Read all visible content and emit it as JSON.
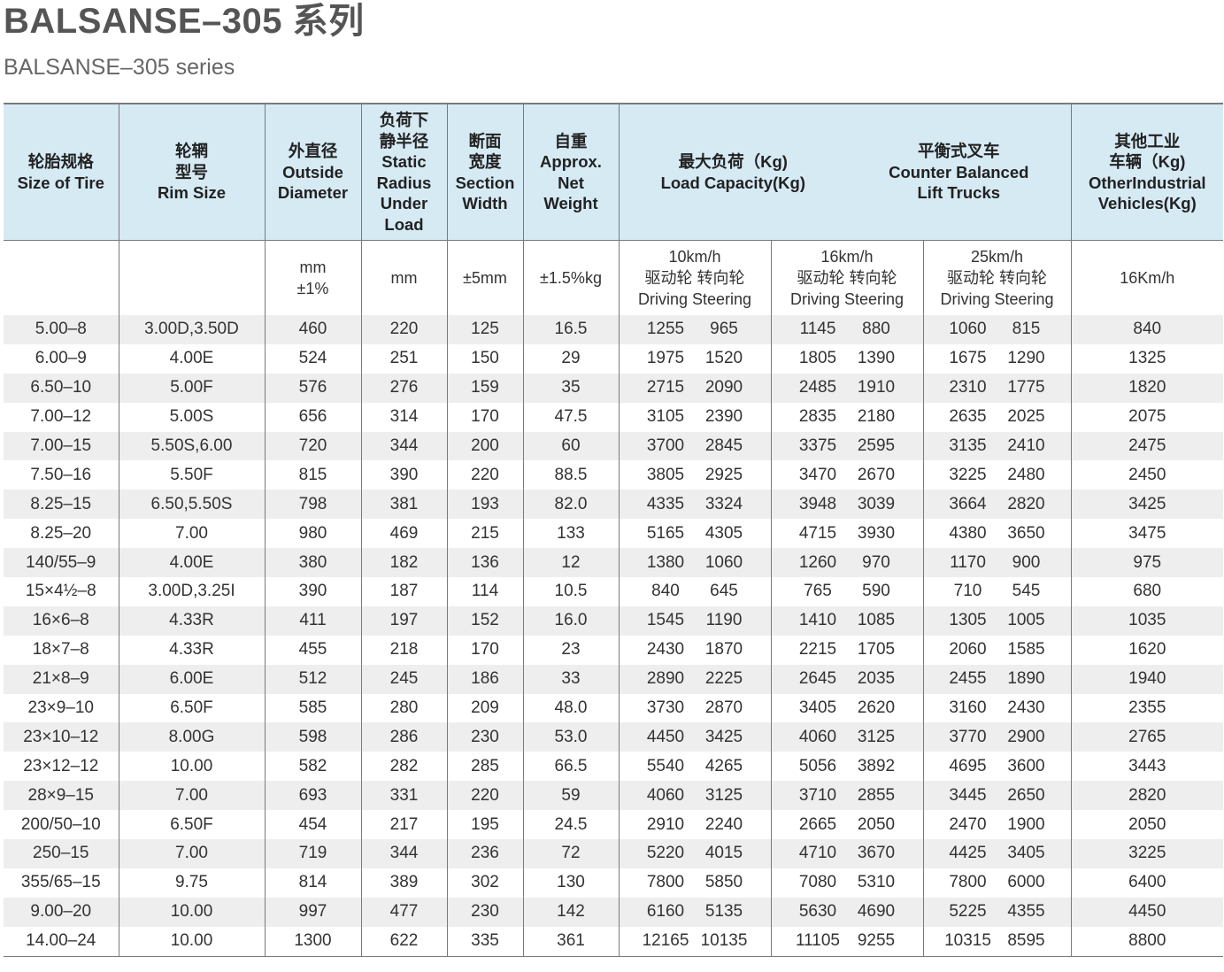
{
  "title": "BALSANSE–305 系列",
  "subtitle": "BALSANSE–305 series",
  "header": {
    "size": [
      "轮胎规格",
      "Size of Tire"
    ],
    "rim": [
      "轮辋",
      "型号",
      "Rim Size"
    ],
    "outside": [
      "外直径",
      "Outside",
      "Diameter"
    ],
    "radius": [
      "负荷下",
      "静半径",
      "Static",
      "Radius",
      "Under",
      "Load"
    ],
    "section": [
      "断面",
      "宽度",
      "Section",
      "Width"
    ],
    "weight": [
      "自重",
      "Approx.",
      "Net",
      "Weight"
    ],
    "load_left": [
      "最大负荷（Kg)",
      "Load Capacity(Kg)"
    ],
    "load_right": [
      "平衡式叉车",
      "Counter Balanced",
      "Lift Trucks"
    ],
    "other": [
      "其他工业",
      "车辆（Kg)",
      "OtherIndustrial",
      "Vehicles(Kg)"
    ]
  },
  "units": {
    "outside": [
      "mm",
      "±1%"
    ],
    "radius": "mm",
    "section": "±5mm",
    "weight": "±1.5%kg",
    "speed1": [
      "10km/h",
      "驱动轮  转向轮",
      "Driving  Steering"
    ],
    "speed2": [
      "16km/h",
      "驱动轮  转向轮",
      "Driving  Steering"
    ],
    "speed3": [
      "25km/h",
      "驱动轮  转向轮",
      "Driving  Steering"
    ],
    "other": "16Km/h"
  },
  "rows": [
    [
      "5.00–8",
      "3.00D,3.50D",
      "460",
      "220",
      "125",
      "16.5",
      "1255",
      "965",
      "1145",
      "880",
      "1060",
      "815",
      "840"
    ],
    [
      "6.00–9",
      "4.00E",
      "524",
      "251",
      "150",
      "29",
      "1975",
      "1520",
      "1805",
      "1390",
      "1675",
      "1290",
      "1325"
    ],
    [
      "6.50–10",
      "5.00F",
      "576",
      "276",
      "159",
      "35",
      "2715",
      "2090",
      "2485",
      "1910",
      "2310",
      "1775",
      "1820"
    ],
    [
      "7.00–12",
      "5.00S",
      "656",
      "314",
      "170",
      "47.5",
      "3105",
      "2390",
      "2835",
      "2180",
      "2635",
      "2025",
      "2075"
    ],
    [
      "7.00–15",
      "5.50S,6.00",
      "720",
      "344",
      "200",
      "60",
      "3700",
      "2845",
      "3375",
      "2595",
      "3135",
      "2410",
      "2475"
    ],
    [
      "7.50–16",
      "5.50F",
      "815",
      "390",
      "220",
      "88.5",
      "3805",
      "2925",
      "3470",
      "2670",
      "3225",
      "2480",
      "2450"
    ],
    [
      "8.25–15",
      "6.50,5.50S",
      "798",
      "381",
      "193",
      "82.0",
      "4335",
      "3324",
      "3948",
      "3039",
      "3664",
      "2820",
      "3425"
    ],
    [
      "8.25–20",
      "7.00",
      "980",
      "469",
      "215",
      "133",
      "5165",
      "4305",
      "4715",
      "3930",
      "4380",
      "3650",
      "3475"
    ],
    [
      "140/55–9",
      "4.00E",
      "380",
      "182",
      "136",
      "12",
      "1380",
      "1060",
      "1260",
      "970",
      "1170",
      "900",
      "975"
    ],
    [
      "15×4½–8",
      "3.00D,3.25I",
      "390",
      "187",
      "114",
      "10.5",
      "840",
      "645",
      "765",
      "590",
      "710",
      "545",
      "680"
    ],
    [
      "16×6–8",
      "4.33R",
      "411",
      "197",
      "152",
      "16.0",
      "1545",
      "1190",
      "1410",
      "1085",
      "1305",
      "1005",
      "1035"
    ],
    [
      "18×7–8",
      "4.33R",
      "455",
      "218",
      "170",
      "23",
      "2430",
      "1870",
      "2215",
      "1705",
      "2060",
      "1585",
      "1620"
    ],
    [
      "21×8–9",
      "6.00E",
      "512",
      "245",
      "186",
      "33",
      "2890",
      "2225",
      "2645",
      "2035",
      "2455",
      "1890",
      "1940"
    ],
    [
      "23×9–10",
      "6.50F",
      "585",
      "280",
      "209",
      "48.0",
      "3730",
      "2870",
      "3405",
      "2620",
      "3160",
      "2430",
      "2355"
    ],
    [
      "23×10–12",
      "8.00G",
      "598",
      "286",
      "230",
      "53.0",
      "4450",
      "3425",
      "4060",
      "3125",
      "3770",
      "2900",
      "2765"
    ],
    [
      "23×12–12",
      "10.00",
      "582",
      "282",
      "285",
      "66.5",
      "5540",
      "4265",
      "5056",
      "3892",
      "4695",
      "3600",
      "3443"
    ],
    [
      "28×9–15",
      "7.00",
      "693",
      "331",
      "220",
      "59",
      "4060",
      "3125",
      "3710",
      "2855",
      "3445",
      "2650",
      "2820"
    ],
    [
      "200/50–10",
      "6.50F",
      "454",
      "217",
      "195",
      "24.5",
      "2910",
      "2240",
      "2665",
      "2050",
      "2470",
      "1900",
      "2050"
    ],
    [
      "250–15",
      "7.00",
      "719",
      "344",
      "236",
      "72",
      "5220",
      "4015",
      "4710",
      "3670",
      "4425",
      "3405",
      "3225"
    ],
    [
      "355/65–15",
      "9.75",
      "814",
      "389",
      "302",
      "130",
      "7800",
      "5850",
      "7080",
      "5310",
      "7800",
      "6000",
      "6400"
    ],
    [
      "9.00–20",
      "10.00",
      "997",
      "477",
      "230",
      "142",
      "6160",
      "5135",
      "5630",
      "4690",
      "5225",
      "4355",
      "4450"
    ],
    [
      "14.00–24",
      "10.00",
      "1300",
      "622",
      "335",
      "361",
      "12165",
      "10135",
      "11105",
      "9255",
      "10315",
      "8595",
      "8800"
    ]
  ]
}
